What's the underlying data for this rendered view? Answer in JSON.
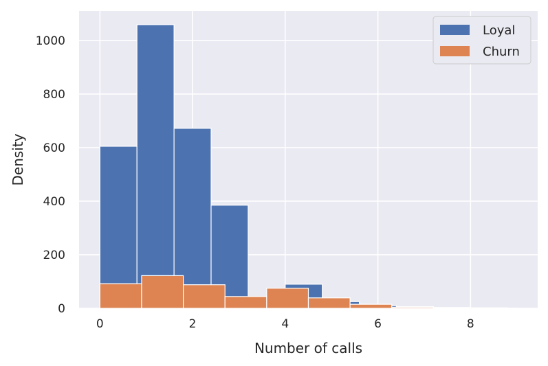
{
  "chart_data": {
    "type": "bar",
    "title": "",
    "xlabel": "Number of calls",
    "ylabel": "Density",
    "xlim": [
      -0.45,
      9.45
    ],
    "ylim": [
      0,
      1110
    ],
    "xticks": [
      0,
      2,
      4,
      6,
      8
    ],
    "yticks": [
      0,
      200,
      400,
      600,
      800,
      1000
    ],
    "grid": true,
    "legend_position": "top-right",
    "series": [
      {
        "name": "Loyal",
        "color": "#4c72b0",
        "bin_edges": [
          0,
          0.8,
          1.6,
          2.4,
          3.2,
          4.0,
          4.8,
          5.6,
          6.4,
          7.2,
          8.0,
          8.8,
          9.0
        ],
        "values": [
          605,
          1059,
          672,
          385,
          0,
          90,
          25,
          10,
          6,
          3,
          2,
          1
        ]
      },
      {
        "name": "Churn",
        "color": "#dd8452",
        "bin_edges": [
          0,
          0.9,
          1.8,
          2.7,
          3.6,
          4.5,
          5.4,
          6.3,
          7.2,
          8.1,
          9.0
        ],
        "values": [
          92,
          122,
          88,
          44,
          75,
          39,
          15,
          4,
          1,
          1
        ]
      }
    ]
  }
}
